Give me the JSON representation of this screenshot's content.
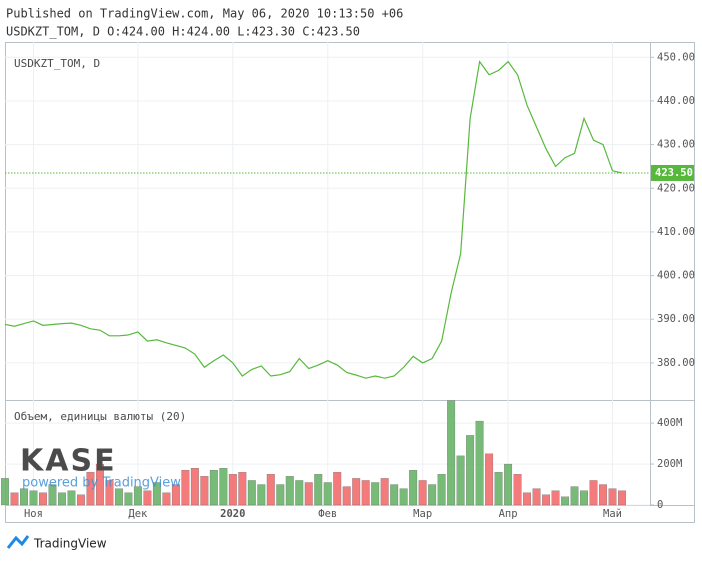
{
  "header": {
    "published": "Published on TradingView.com, May 06, 2020 10:13:50 +06",
    "ohlc": "USDKZT_TOM, D O:424.00 H:424.00 L:423.30 C:423.50"
  },
  "watermark": {
    "logo": "KASE",
    "powered": "powered by TradingView"
  },
  "footer": {
    "brand": "TradingView"
  },
  "chart_data": [
    {
      "type": "line",
      "title": "USDKZT_TOM, D",
      "color": "#57b93b",
      "categories": [
        null,
        null,
        null,
        "Ноя",
        null,
        null,
        null,
        null,
        null,
        null,
        null,
        null,
        null,
        null,
        "Дек",
        null,
        null,
        null,
        null,
        null,
        null,
        null,
        null,
        null,
        "2020",
        null,
        null,
        null,
        null,
        null,
        null,
        null,
        null,
        null,
        "Фев",
        null,
        null,
        null,
        null,
        null,
        null,
        null,
        null,
        null,
        "Мар",
        null,
        null,
        null,
        null,
        null,
        null,
        null,
        null,
        "Апр",
        null,
        null,
        null,
        null,
        null,
        null,
        null,
        null,
        null,
        null,
        "Май",
        null
      ],
      "series": [
        {
          "name": "USDKZT_TOM",
          "color": "#57b93b",
          "values": [
            388.8,
            388.4,
            389,
            389.6,
            388.6,
            388.8,
            389,
            389.1,
            388.6,
            387.8,
            387.5,
            386.2,
            386.2,
            386.4,
            387.1,
            385,
            385.3,
            384.6,
            384,
            383.4,
            382,
            379,
            380.5,
            381.8,
            380,
            377,
            378.5,
            379.3,
            377,
            377.3,
            378,
            381,
            378.7,
            379.5,
            380.5,
            379.5,
            377.8,
            377.2,
            376.5,
            377,
            376.5,
            377,
            379,
            381.5,
            380,
            381,
            385,
            396,
            405,
            436,
            449,
            446,
            447,
            449,
            446,
            439,
            434,
            429,
            425,
            427,
            428,
            436,
            431,
            430,
            424,
            423.5
          ]
        }
      ],
      "last_label": {
        "value": 423.5,
        "label": "423.50"
      },
      "ylim": [
        371.5,
        453.5
      ],
      "yticks": [
        {
          "value": 380,
          "label": "380.00"
        },
        {
          "value": 390,
          "label": "390.00"
        },
        {
          "value": 400,
          "label": "400.00"
        },
        {
          "value": 410,
          "label": "410.00"
        },
        {
          "value": 420,
          "label": "420.00"
        },
        {
          "value": 430,
          "label": "430.00"
        },
        {
          "value": 440,
          "label": "440.00"
        },
        {
          "value": 450,
          "label": "450.00"
        }
      ],
      "grid": true
    },
    {
      "type": "bar",
      "title": "Объем, единицы валюты (20)",
      "up_color": "#6ab46a",
      "down_color": "#f26d6d",
      "values": [
        130,
        60,
        80,
        70,
        60,
        100,
        60,
        70,
        50,
        160,
        200,
        120,
        80,
        60,
        90,
        70,
        110,
        60,
        100,
        170,
        180,
        140,
        170,
        180,
        150,
        160,
        120,
        100,
        150,
        100,
        140,
        120,
        110,
        150,
        110,
        160,
        90,
        130,
        120,
        110,
        130,
        100,
        80,
        170,
        120,
        100,
        150,
        510,
        240,
        340,
        410,
        250,
        160,
        200,
        150,
        60,
        80,
        50,
        70,
        40,
        90,
        70,
        120,
        100,
        80,
        70
      ],
      "ylim": [
        0,
        513
      ],
      "yticks": [
        0,
        {
          "value": 200,
          "label": "200M"
        },
        {
          "value": 400,
          "label": "400M"
        }
      ]
    }
  ]
}
